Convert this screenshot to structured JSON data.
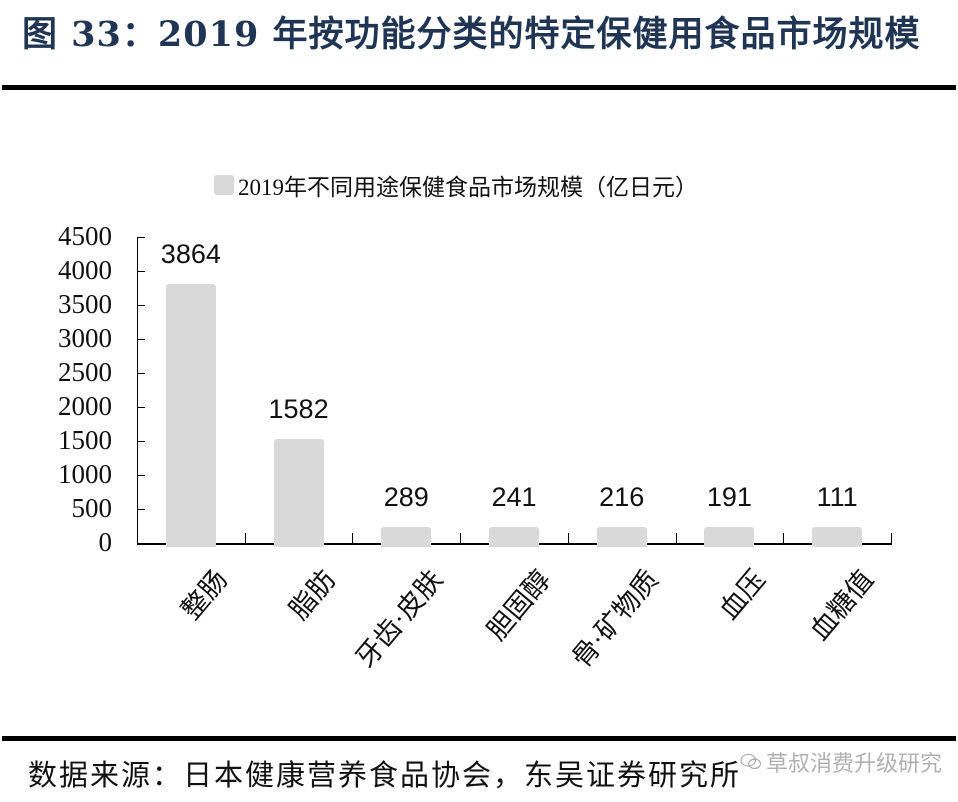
{
  "figure": {
    "title": "图 33：2019 年按功能分类的特定保健用食品市场规模",
    "source": "数据来源：日本健康营养食品协会，东吴证券研究所",
    "watermark": "草叔消费升级研究"
  },
  "chart_data": {
    "type": "bar",
    "title": "2019年按功能分类的特定保健用食品市场规模",
    "categories": [
      "整肠",
      "脂肪",
      "牙齿·皮肤",
      "胆固醇",
      "骨·矿物质",
      "血压",
      "血糖值"
    ],
    "series": [
      {
        "name": "2019年不同用途保健食品市场规模（亿日元）",
        "color": "#d9d9d9",
        "values": [
          3864,
          1582,
          289,
          241,
          216,
          191,
          111
        ]
      }
    ],
    "value_labels": [
      "3864",
      "1582",
      "289",
      "241",
      "216",
      "191",
      "111"
    ],
    "xlabel": "",
    "ylabel": "",
    "ylim": [
      0,
      4500
    ],
    "yticks": [
      "4500",
      "4000",
      "3500",
      "3000",
      "2500",
      "2000",
      "1500",
      "1000",
      "500",
      "0"
    ],
    "grid": false,
    "legend_position": "top",
    "legend": [
      "2019年不同用途保健食品市场规模（亿日元）"
    ]
  }
}
